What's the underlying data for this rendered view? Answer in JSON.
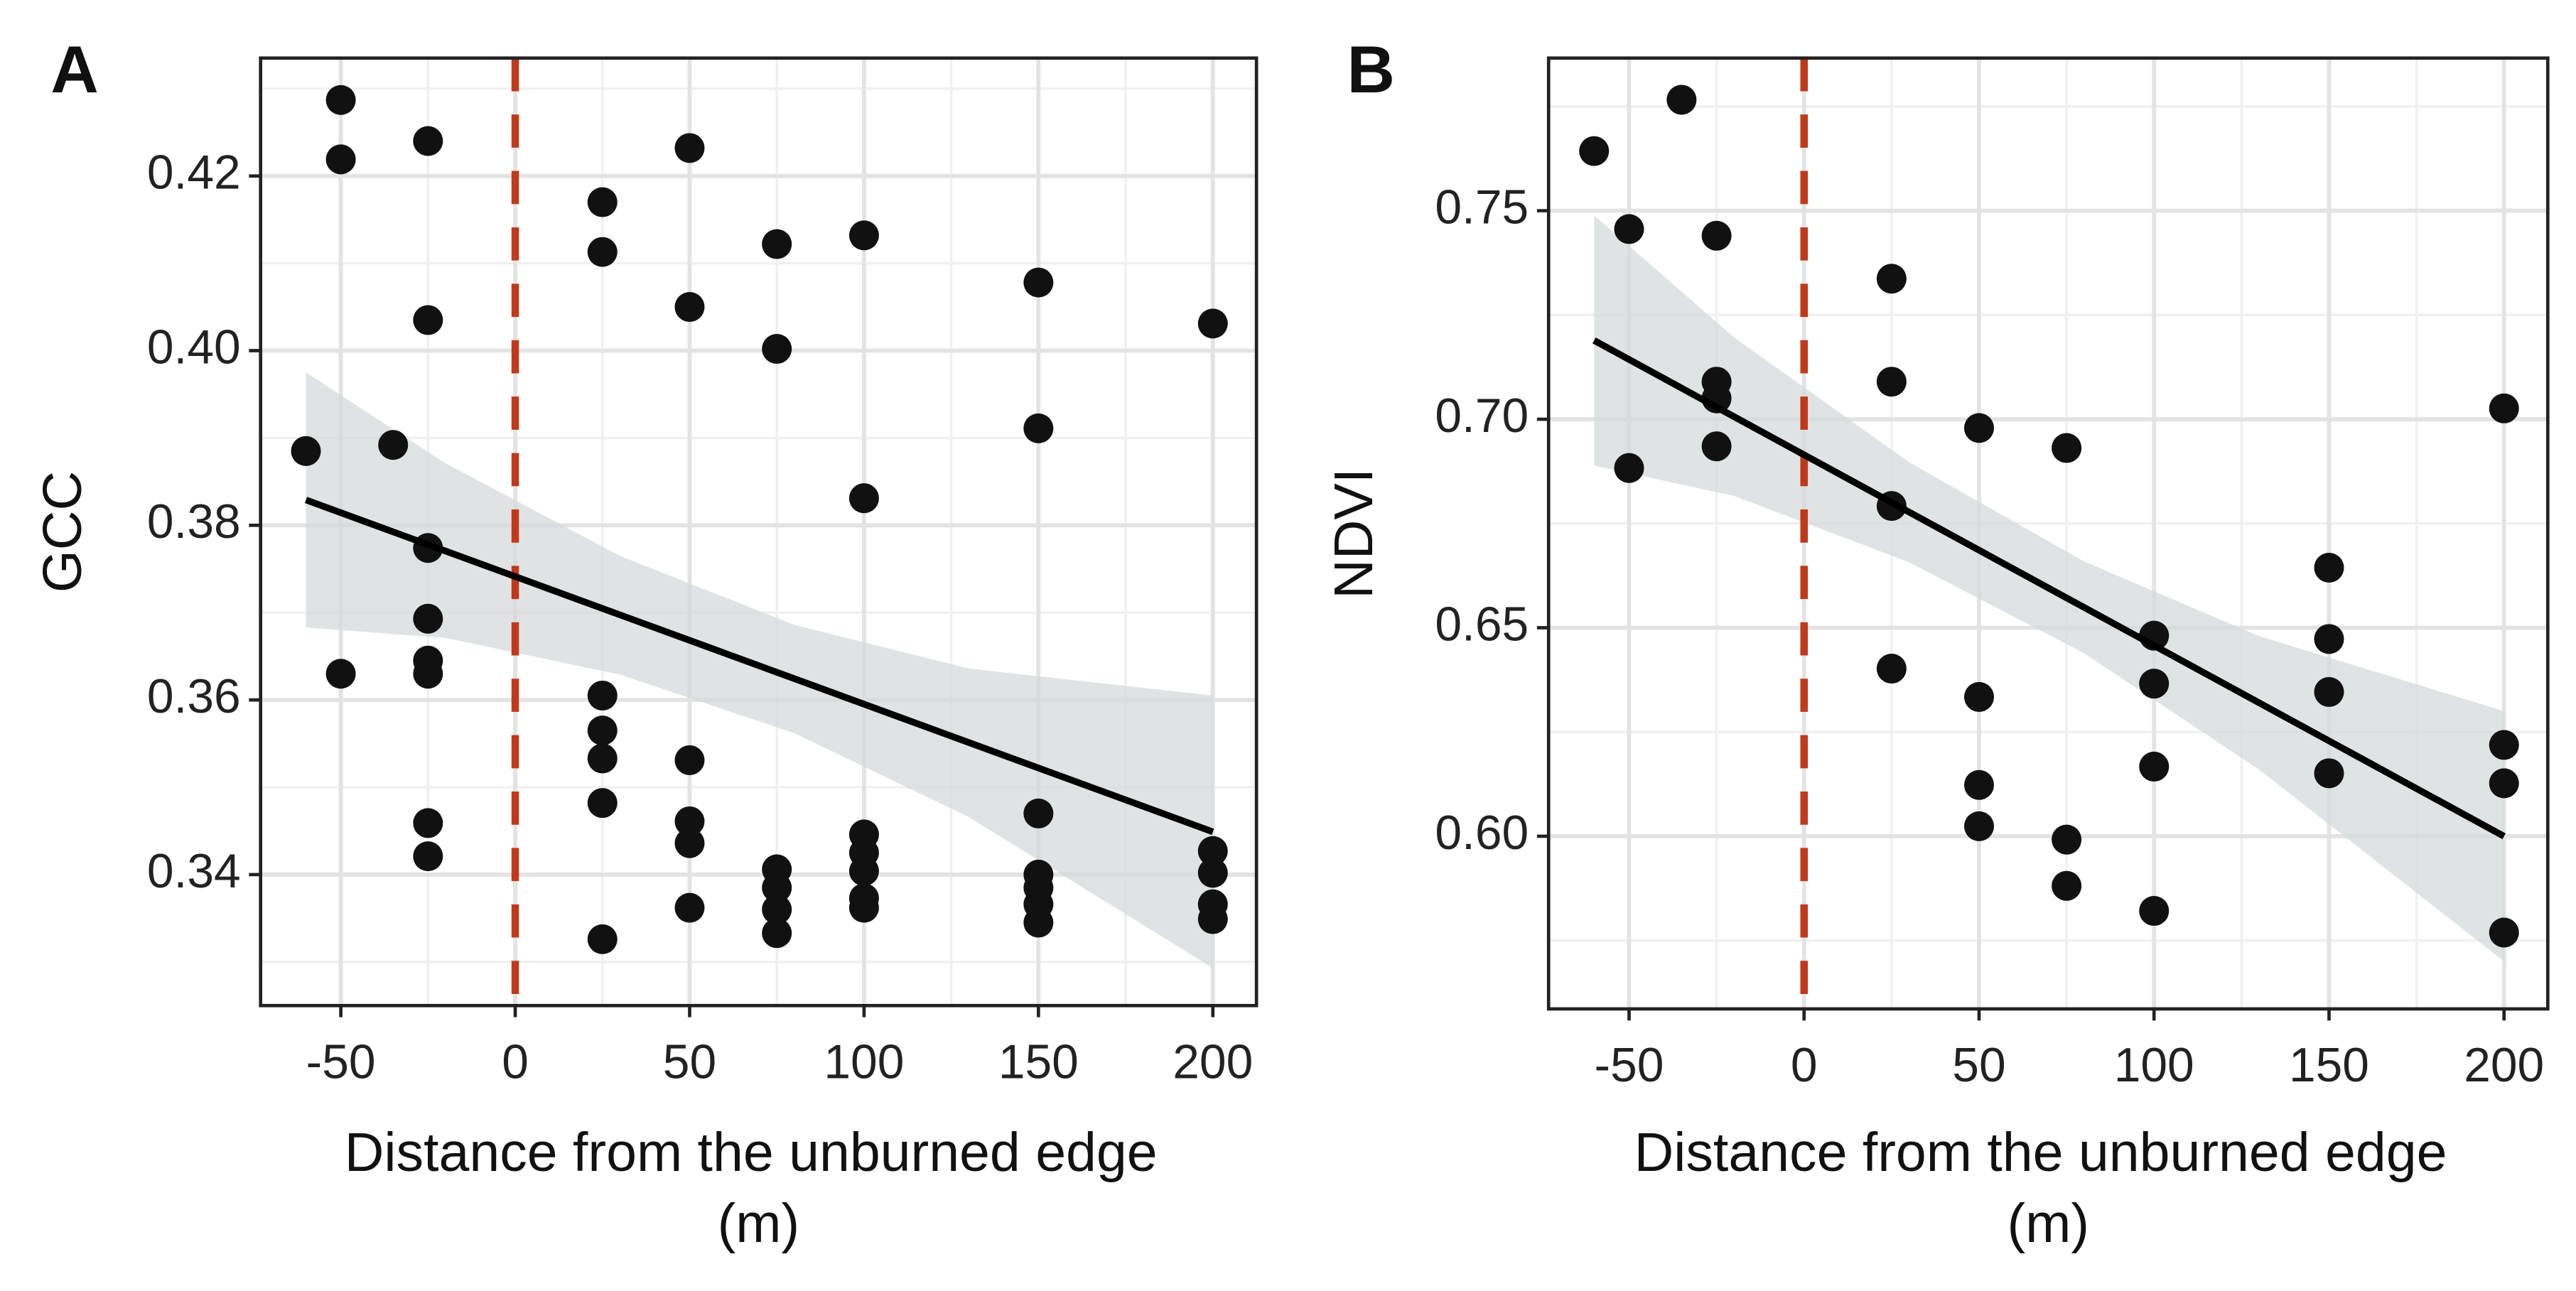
{
  "chart_data": [
    {
      "type": "scatter",
      "panel_label": "A",
      "y_label": "GCC",
      "x_label": "Distance from the unburned edge (m)",
      "xlim": [
        -73,
        212.5
      ],
      "ylim": [
        0.325,
        0.4335
      ],
      "xticks": [
        -50,
        0,
        50,
        100,
        150,
        200
      ],
      "yticks": [
        0.34,
        0.36,
        0.38,
        {
          "value": 0.4,
          "label": "0.40"
        },
        0.42
      ],
      "x_minor_grid": [
        -25,
        25,
        75,
        125,
        175
      ],
      "y_minor_grid": [
        0.33,
        0.35,
        0.37,
        0.39,
        0.41,
        0.43
      ],
      "grid": true,
      "point_color": "#111111",
      "x": [
        -60,
        -50,
        -50,
        -50,
        -35,
        -25,
        -25,
        -25,
        -25,
        -25,
        -25,
        -25,
        -25,
        25,
        25,
        25,
        25,
        25,
        25,
        25,
        50,
        50,
        50,
        50,
        50,
        50,
        75,
        75,
        75,
        75,
        75,
        75,
        100,
        100,
        100,
        100,
        100,
        100,
        100,
        150,
        150,
        150,
        150,
        150,
        150,
        150,
        200,
        200,
        200,
        200,
        200
      ],
      "values": [
        0.3885,
        0.4287,
        0.4219,
        0.363,
        0.3892,
        0.424,
        0.4035,
        0.3774,
        0.3693,
        0.3645,
        0.363,
        0.3459,
        0.3421,
        0.417,
        0.4113,
        0.3605,
        0.3565,
        0.3533,
        0.3482,
        0.3326,
        0.4232,
        0.405,
        0.3531,
        0.3461,
        0.3436,
        0.3362,
        0.4122,
        0.4002,
        0.3406,
        0.3385,
        0.336,
        0.3333,
        0.4132,
        0.3831,
        0.3446,
        0.3425,
        0.3404,
        0.3373,
        0.3362,
        0.4078,
        0.3911,
        0.347,
        0.34,
        0.3385,
        0.3366,
        0.3345,
        0.4031,
        0.3427,
        0.3402,
        0.3366,
        0.3349
      ],
      "fit": {
        "x": [
          -60,
          200
        ],
        "values": [
          0.3829,
          0.3449
        ],
        "color": "#000000"
      },
      "band": {
        "x": [
          -60,
          -20,
          30,
          80,
          130,
          200
        ],
        "upper": [
          0.3975,
          0.3871,
          0.3765,
          0.3686,
          0.3636,
          0.3605
        ],
        "lower": [
          0.3683,
          0.3671,
          0.3629,
          0.3562,
          0.3466,
          0.3293
        ],
        "color": "#d5d9db"
      },
      "vline": {
        "x": 0,
        "color": "#c0391b"
      }
    },
    {
      "type": "scatter",
      "panel_label": "B",
      "y_label": "NDVI",
      "x_label": "Distance from the unburned edge (m)",
      "xlim": [
        -73,
        212.5
      ],
      "ylim": [
        0.5586,
        0.7866
      ],
      "xticks": [
        -50,
        0,
        50,
        100,
        150,
        200
      ],
      "yticks": [
        {
          "value": 0.6,
          "label": "0.60"
        },
        0.65,
        {
          "value": 0.7,
          "label": "0.70"
        },
        0.75
      ],
      "x_minor_grid": [
        -25,
        25,
        75,
        125,
        175
      ],
      "y_minor_grid": [
        0.575,
        0.625,
        0.675,
        0.725,
        0.775
      ],
      "grid": true,
      "point_color": "#111111",
      "x": [
        -60,
        -50,
        -50,
        -35,
        -25,
        -25,
        -25,
        -25,
        25,
        25,
        25,
        25,
        50,
        50,
        50,
        50,
        75,
        75,
        75,
        100,
        100,
        100,
        100,
        150,
        150,
        150,
        150,
        200,
        200,
        200,
        200
      ],
      "values": [
        0.7643,
        0.7456,
        0.6883,
        0.7766,
        0.744,
        0.709,
        0.705,
        0.6935,
        0.7337,
        0.709,
        0.6792,
        0.6402,
        0.6979,
        0.6334,
        0.6123,
        0.6024,
        0.6931,
        0.5992,
        0.5881,
        0.6481,
        0.6366,
        0.6167,
        0.5821,
        0.6644,
        0.6473,
        0.6346,
        0.6151,
        0.7026,
        0.6219,
        0.6127,
        0.5769
      ],
      "fit": {
        "x": [
          -60,
          200
        ],
        "values": [
          0.7189,
          0.6
        ],
        "color": "#000000"
      },
      "band": {
        "x": [
          -60,
          -20,
          30,
          80,
          130,
          200
        ],
        "upper": [
          0.7489,
          0.7196,
          0.6897,
          0.6659,
          0.648,
          0.63
        ],
        "lower": [
          0.6889,
          0.6816,
          0.6657,
          0.6439,
          0.616,
          0.57
        ],
        "color": "#d5d9db"
      },
      "vline": {
        "x": 0,
        "color": "#c0391b"
      }
    }
  ]
}
